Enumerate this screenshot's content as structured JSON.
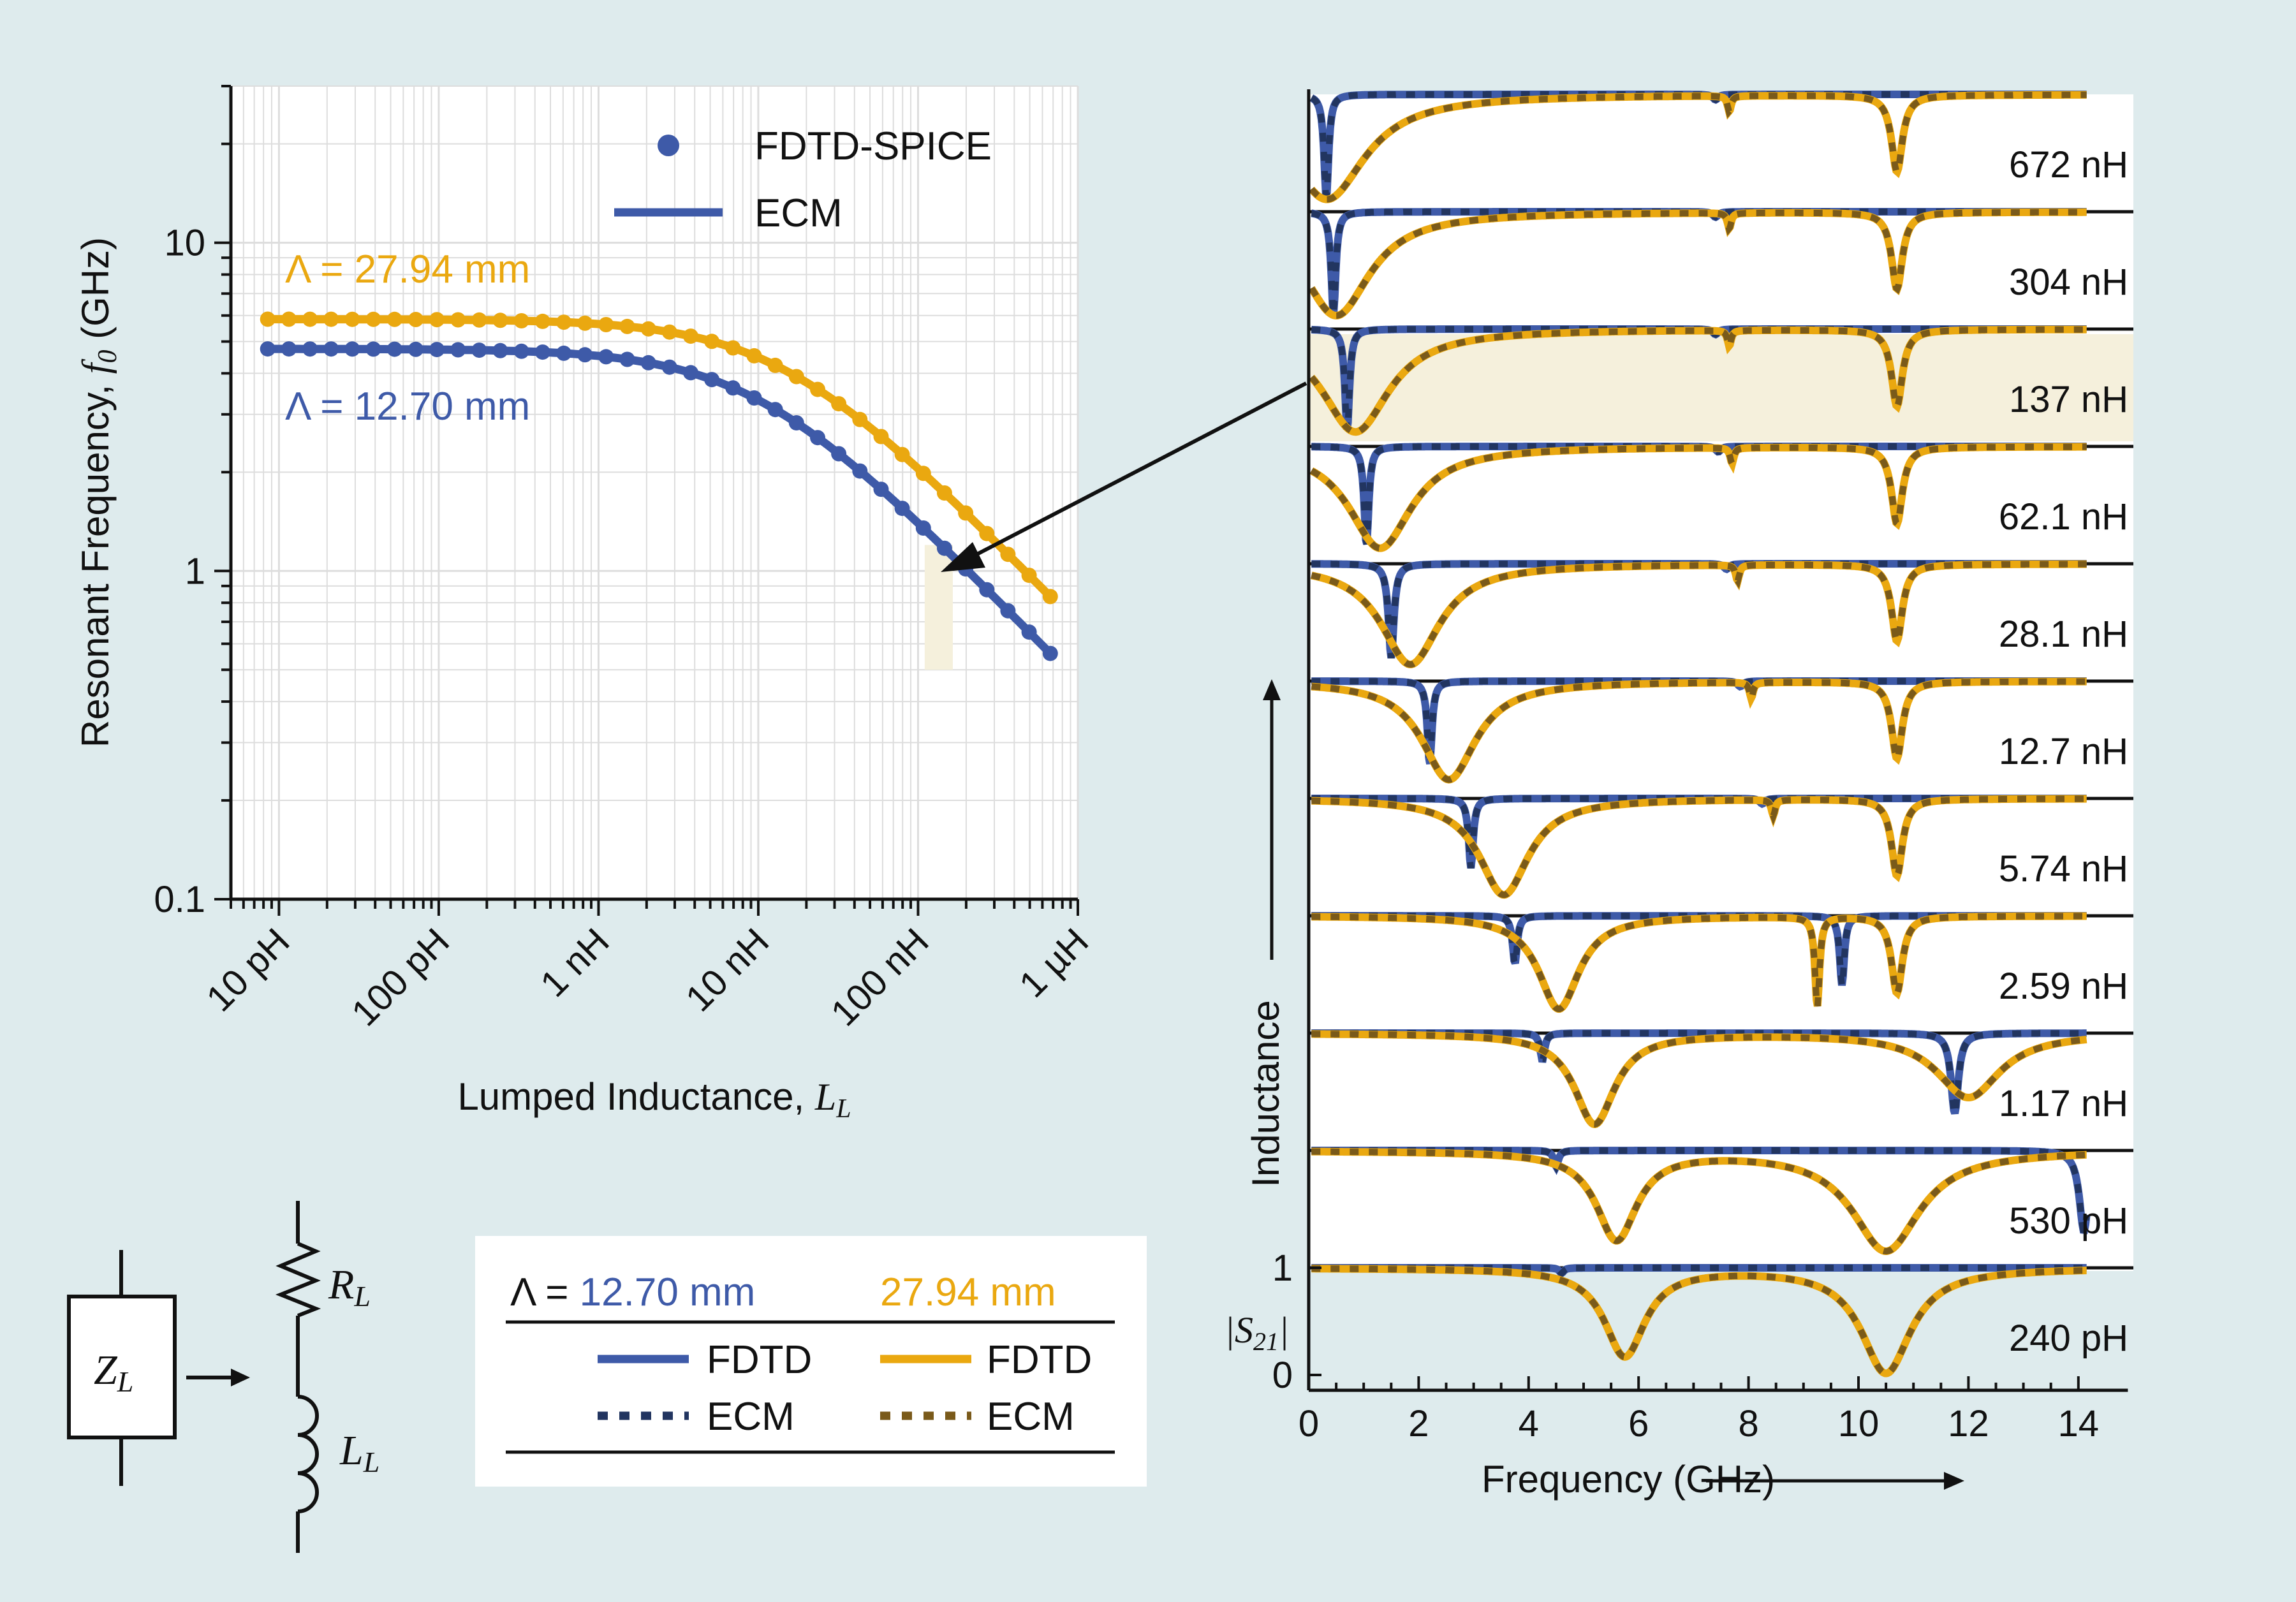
{
  "colors": {
    "background": "#deebed",
    "blue": "#3e5aa8",
    "blue_dark": "#223560",
    "gold": "#eaa810",
    "gold_dark": "#7a5a1a",
    "highlight": "#f5f0dc",
    "axis": "#111111",
    "grid": "#dddddd"
  },
  "chart_data": [
    {
      "type": "scatter",
      "title": "",
      "xlabel": "Lumped Inductance, ",
      "xlabel_symbol": "L",
      "xlabel_sub": "L",
      "ylabel": "Resonant Frequency, ",
      "ylabel_symbol": "f",
      "ylabel_sub": "0",
      "ylabel_unit": " (GHz)",
      "x_scale": "log",
      "y_scale": "log",
      "xlim_H": [
        5e-12,
        1e-06
      ],
      "ylim_GHz": [
        0.1,
        30
      ],
      "x_ticks": [
        "10 pH",
        "100 pH",
        "1 nH",
        "10 nH",
        "100 nH",
        "1 µH"
      ],
      "x_tick_values_H": [
        1e-11,
        1e-10,
        1e-09,
        1e-08,
        1e-07,
        1e-06
      ],
      "y_ticks": [
        "0.1",
        "1",
        "10"
      ],
      "y_tick_values_GHz": [
        0.1,
        1,
        10
      ],
      "grid": true,
      "legend": [
        {
          "label": "FDTD-SPICE",
          "marker": "dot",
          "color": "#3e5aa8"
        },
        {
          "label": "ECM",
          "marker": "line",
          "color": "#3e5aa8"
        }
      ],
      "series": [
        {
          "name": "Λ = 27.94 mm",
          "color": "#eaa810",
          "f_low_GHz": 5.85,
          "k": 1.4e-08,
          "L_max_H": 6.72e-07
        },
        {
          "name": "Λ = 12.70 mm",
          "color": "#3e5aa8",
          "f_low_GHz": 4.75,
          "k": 9.5e-09,
          "L_max_H": 6.72e-07
        }
      ],
      "highlight": {
        "x_range_H": [
          1.1e-07,
          1.65e-07
        ],
        "y_range_GHz": [
          0.5,
          1.2
        ]
      }
    },
    {
      "type": "line",
      "xlabel": "Frequency (GHz)",
      "ylabel": "Inductance",
      "y_symbol_label": "|S",
      "y_symbol_sub": "21",
      "y_symbol_suffix": "|",
      "xlim_GHz": [
        0,
        15
      ],
      "x_ticks": [
        "0",
        "2",
        "4",
        "6",
        "8",
        "10",
        "12",
        "14"
      ],
      "x_tick_values_GHz": [
        0,
        2,
        4,
        6,
        8,
        10,
        12,
        14
      ],
      "y_ticks": [
        "0",
        "1"
      ],
      "stack_labels": [
        "672 nH",
        "304 nH",
        "137 nH",
        "62.1 nH",
        "28.1 nH",
        "12.7 nH",
        "5.74 nH",
        "2.59 nH",
        "1.17 nH",
        "530 pH",
        "240 pH"
      ],
      "highlighted_panel": "137 nH",
      "panels": [
        {
          "label": "672 nH",
          "blue": [
            [
              0.32,
              0.05,
              0.03
            ],
            [
              7.4,
              0.06,
              0.95
            ]
          ],
          "gold": [
            [
              0.33,
              0.85,
              0.02
            ],
            [
              7.65,
              0.04,
              0.85
            ],
            [
              10.7,
              0.12,
              0.28
            ]
          ]
        },
        {
          "label": "304 nH",
          "blue": [
            [
              0.45,
              0.05,
              0.04
            ],
            [
              7.4,
              0.06,
              0.95
            ]
          ],
          "gold": [
            [
              0.5,
              0.75,
              0.03
            ],
            [
              7.65,
              0.04,
              0.85
            ],
            [
              10.7,
              0.12,
              0.28
            ]
          ]
        },
        {
          "label": "137 nH",
          "blue": [
            [
              0.7,
              0.05,
              0.05
            ],
            [
              7.4,
              0.06,
              0.95
            ]
          ],
          "gold": [
            [
              0.85,
              0.75,
              0.04
            ],
            [
              7.65,
              0.04,
              0.85
            ],
            [
              10.7,
              0.12,
              0.28
            ]
          ]
        },
        {
          "label": "62.1 nH",
          "blue": [
            [
              1.05,
              0.05,
              0.07
            ],
            [
              7.45,
              0.06,
              0.95
            ]
          ],
          "gold": [
            [
              1.3,
              0.7,
              0.05
            ],
            [
              7.7,
              0.04,
              0.85
            ],
            [
              10.7,
              0.12,
              0.28
            ]
          ]
        },
        {
          "label": "28.1 nH",
          "blue": [
            [
              1.5,
              0.06,
              0.12
            ],
            [
              7.6,
              0.06,
              0.95
            ]
          ],
          "gold": [
            [
              1.85,
              0.65,
              0.06
            ],
            [
              7.8,
              0.04,
              0.85
            ],
            [
              10.7,
              0.12,
              0.28
            ]
          ]
        },
        {
          "label": "12.7 nH",
          "blue": [
            [
              2.2,
              0.05,
              0.22
            ],
            [
              7.85,
              0.06,
              0.95
            ]
          ],
          "gold": [
            [
              2.55,
              0.6,
              0.08
            ],
            [
              8.05,
              0.04,
              0.85
            ],
            [
              10.7,
              0.12,
              0.28
            ]
          ]
        },
        {
          "label": "5.74 nH",
          "blue": [
            [
              2.95,
              0.05,
              0.35
            ],
            [
              8.25,
              0.06,
              0.95
            ]
          ],
          "gold": [
            [
              3.55,
              0.55,
              0.1
            ],
            [
              8.45,
              0.04,
              0.85
            ],
            [
              10.7,
              0.12,
              0.28
            ]
          ]
        },
        {
          "label": "2.59 nH",
          "blue": [
            [
              3.75,
              0.05,
              0.55
            ],
            [
              9.7,
              0.05,
              0.35
            ]
          ],
          "gold": [
            [
              4.55,
              0.45,
              0.13
            ],
            [
              9.25,
              0.05,
              0.15
            ],
            [
              10.7,
              0.12,
              0.28
            ]
          ]
        },
        {
          "label": "1.17 nH",
          "blue": [
            [
              4.25,
              0.05,
              0.75
            ],
            [
              11.75,
              0.08,
              0.25
            ]
          ],
          "gold": [
            [
              5.2,
              0.45,
              0.15
            ],
            [
              12.0,
              0.7,
              0.4
            ]
          ]
        },
        {
          "label": "530 pH",
          "blue": [
            [
              4.5,
              0.05,
              0.85
            ],
            [
              14.1,
              0.1,
              0.25
            ]
          ],
          "gold": [
            [
              5.6,
              0.45,
              0.16
            ],
            [
              10.5,
              0.75,
              0.06
            ]
          ]
        },
        {
          "label": "240 pH",
          "blue": [
            [
              4.6,
              0.05,
              0.95
            ]
          ],
          "gold": [
            [
              5.75,
              0.45,
              0.17
            ],
            [
              10.5,
              0.55,
              0.015
            ]
          ]
        }
      ]
    }
  ],
  "annotations": {
    "lambda_gold": "Λ = 27.94 mm",
    "lambda_blue": "Λ = 12.70 mm",
    "legend_dot_label": "FDTD-SPICE",
    "legend_line_label": "ECM"
  },
  "circuit": {
    "impedance_symbol": "Z",
    "impedance_sub": "L",
    "resistor_symbol": "R",
    "resistor_sub": "L",
    "inductor_symbol": "L",
    "inductor_sub": "L"
  },
  "legend_table": {
    "lambda_prefix": "Λ = ",
    "col1_header": "12.70 mm",
    "col2_header": "27.94 mm",
    "fdtd_label": "FDTD",
    "ecm_label": "ECM"
  }
}
